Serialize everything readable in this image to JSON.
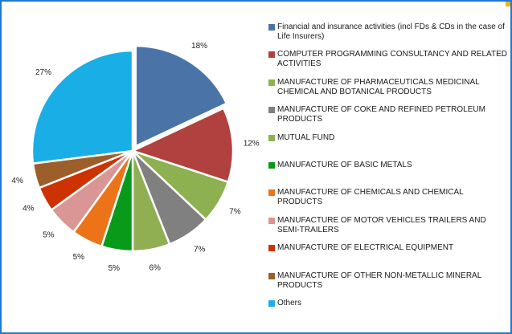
{
  "colors": {
    "frame_border": "#1f78d8",
    "corner_tab": "#f5b400"
  },
  "chart_data": {
    "type": "pie",
    "title": "",
    "legend_position": "right",
    "slices": [
      {
        "name": "Financial and insurance activities (incl FDs & CDs in the case of Life Insurers)",
        "value": 18,
        "label": "18%",
        "color": "#4a74a8"
      },
      {
        "name": "COMPUTER PROGRAMMING  CONSULTANCY AND RELATED ACTIVITIES",
        "value": 12,
        "label": "12%",
        "color": "#b0413e"
      },
      {
        "name": "MANUFACTURE OF PHARMACEUTICALS  MEDICINAL CHEMICAL AND BOTANICAL PRODUCTS",
        "value": 7,
        "label": "7%",
        "color": "#8db050"
      },
      {
        "name": "MANUFACTURE OF COKE AND REFINED PETROLEUM PRODUCTS",
        "value": 7,
        "label": "7%",
        "color": "#808080"
      },
      {
        "name": "MUTUAL FUND",
        "value": 6,
        "label": "6%",
        "color": "#8faf52"
      },
      {
        "name": "MANUFACTURE OF BASIC METALS",
        "value": 5,
        "label": "5%",
        "color": "#0a9a1a"
      },
      {
        "name": "MANUFACTURE OF CHEMICALS AND CHEMICAL PRODUCTS",
        "value": 5,
        "label": "5%",
        "color": "#ec7318"
      },
      {
        "name": "MANUFACTURE OF MOTOR VEHICLES  TRAILERS AND SEMI-TRAILERS",
        "value": 5,
        "label": "5%",
        "color": "#d99694"
      },
      {
        "name": "MANUFACTURE OF ELECTRICAL EQUIPMENT",
        "value": 4,
        "label": "4%",
        "color": "#cc3300"
      },
      {
        "name": "MANUFACTURE OF OTHER NON-METALLIC MINERAL PRODUCTS",
        "value": 4,
        "label": "4%",
        "color": "#9c5f2c"
      },
      {
        "name": "Others",
        "value": 27,
        "label": "27%",
        "color": "#1aaee6"
      }
    ]
  }
}
